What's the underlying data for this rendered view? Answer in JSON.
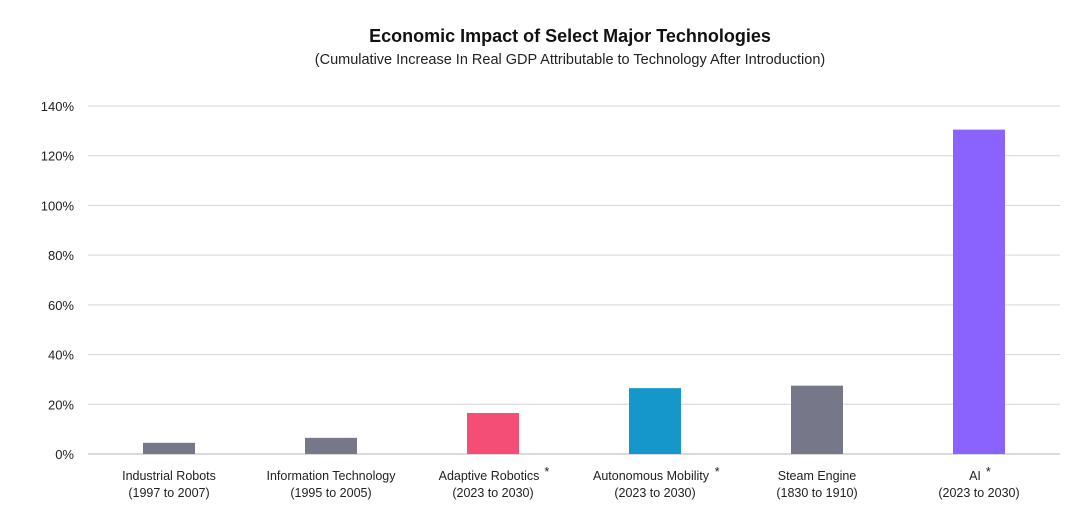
{
  "chart_data": {
    "type": "bar",
    "title": "Economic Impact of Select Major Technologies",
    "subtitle": "(Cumulative Increase In Real GDP Attributable to Technology After Introduction)",
    "xlabel": "",
    "ylabel": "",
    "ylim": [
      0,
      140
    ],
    "yticks": [
      0,
      20,
      40,
      60,
      80,
      100,
      120,
      140
    ],
    "ytick_labels": [
      "0%",
      "20%",
      "40%",
      "60%",
      "80%",
      "100%",
      "120%",
      "140%"
    ],
    "grid": true,
    "legend": "none",
    "categories": [
      {
        "name": "Industrial Robots",
        "period": "(1997 to 2007)",
        "note": ""
      },
      {
        "name": "Information Technology",
        "period": "(1995 to 2005)",
        "note": ""
      },
      {
        "name": "Adaptive Robotics",
        "period": "(2023 to 2030)",
        "note": "*"
      },
      {
        "name": "Autonomous Mobility",
        "period": "(2023 to 2030)",
        "note": "*"
      },
      {
        "name": "Steam Engine",
        "period": "(1830 to 1910)",
        "note": ""
      },
      {
        "name": "AI",
        "period": "(2023 to 2030)",
        "note": "*"
      }
    ],
    "values": [
      4.5,
      6.5,
      16.5,
      26.5,
      27.5,
      130.5
    ],
    "colors": [
      "#767889",
      "#767889",
      "#f44e77",
      "#1597cc",
      "#767889",
      "#8a63ff"
    ]
  }
}
